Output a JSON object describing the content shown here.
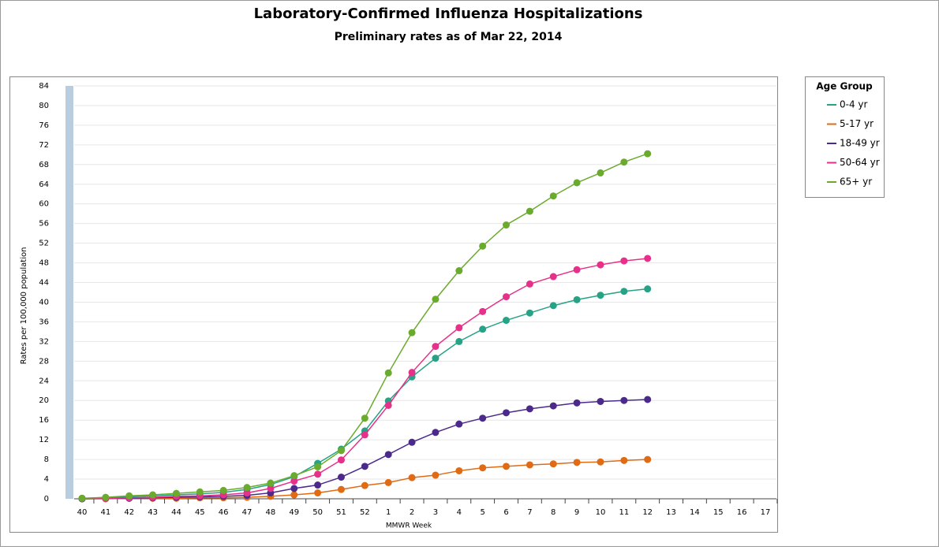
{
  "chart_data": {
    "type": "line",
    "title": "Laboratory-Confirmed Influenza Hospitalizations",
    "subtitle": "Preliminary rates as of Mar 22, 2014",
    "x_label": "MMWR Week",
    "y_label": "Rates per 100,000 population",
    "legend_title": "Age Group",
    "legend": "right",
    "grid": true,
    "categories": [
      "40",
      "41",
      "42",
      "43",
      "44",
      "45",
      "46",
      "47",
      "48",
      "49",
      "50",
      "51",
      "52",
      "1",
      "2",
      "3",
      "4",
      "5",
      "6",
      "7",
      "8",
      "9",
      "10",
      "11",
      "12",
      "13",
      "14",
      "15",
      "16",
      "17"
    ],
    "ylim": [
      0,
      84
    ],
    "yticks": [
      0,
      4,
      8,
      12,
      16,
      20,
      24,
      28,
      32,
      36,
      40,
      44,
      48,
      52,
      56,
      60,
      64,
      68,
      72,
      76,
      80,
      84
    ],
    "series": [
      {
        "name": "0-4 yr",
        "color": "#26a386",
        "values": [
          0.1,
          0.2,
          0.4,
          0.6,
          0.8,
          1.0,
          1.3,
          1.9,
          2.9,
          4.5,
          7.2,
          10.1,
          13.8,
          19.9,
          24.8,
          28.6,
          32.0,
          34.5,
          36.3,
          37.8,
          39.3,
          40.5,
          41.4,
          42.2,
          42.7,
          null,
          null,
          null,
          null,
          null
        ]
      },
      {
        "name": "5-17 yr",
        "color": "#e06b14",
        "values": [
          0,
          0,
          0.1,
          0.1,
          0.1,
          0.2,
          0.2,
          0.3,
          0.5,
          0.8,
          1.2,
          1.9,
          2.7,
          3.3,
          4.3,
          4.8,
          5.7,
          6.3,
          6.6,
          6.9,
          7.1,
          7.4,
          7.5,
          7.8,
          8.0,
          null,
          null,
          null,
          null,
          null
        ]
      },
      {
        "name": "18-49 yr",
        "color": "#4b2a8c",
        "values": [
          0,
          0.1,
          0.1,
          0.2,
          0.3,
          0.4,
          0.5,
          0.7,
          1.2,
          2.1,
          2.8,
          4.4,
          6.6,
          9.0,
          11.5,
          13.5,
          15.2,
          16.4,
          17.5,
          18.3,
          18.9,
          19.5,
          19.8,
          20.0,
          20.2,
          null,
          null,
          null,
          null,
          null
        ]
      },
      {
        "name": "50-64 yr",
        "color": "#e6308a",
        "values": [
          0.1,
          0.1,
          0.2,
          0.3,
          0.5,
          0.6,
          0.8,
          1.2,
          2.1,
          3.6,
          5.0,
          7.9,
          13.0,
          19.0,
          25.7,
          31.0,
          34.8,
          38.1,
          41.1,
          43.7,
          45.2,
          46.6,
          47.6,
          48.4,
          48.9,
          null,
          null,
          null,
          null,
          null
        ]
      },
      {
        "name": "65+ yr",
        "color": "#6aab2e",
        "values": [
          0.1,
          0.3,
          0.6,
          0.8,
          1.1,
          1.4,
          1.7,
          2.3,
          3.2,
          4.7,
          6.5,
          9.8,
          16.4,
          25.6,
          33.8,
          40.6,
          46.4,
          51.4,
          55.7,
          58.5,
          61.6,
          64.3,
          66.3,
          68.5,
          70.2,
          null,
          null,
          null,
          null,
          null
        ]
      }
    ]
  }
}
